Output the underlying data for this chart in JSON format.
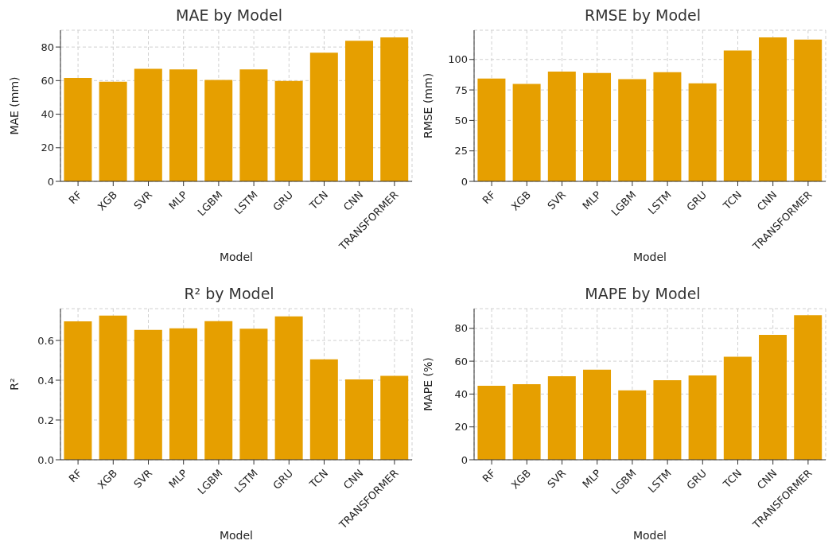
{
  "chart_data": [
    {
      "type": "bar",
      "title": "MAE by Model",
      "xlabel": "Model",
      "ylabel": "MAE (mm)",
      "categories": [
        "RF",
        "XGB",
        "SVR",
        "MLP",
        "LGBM",
        "LSTM",
        "GRU",
        "TCN",
        "CNN",
        "TRANSFORMER"
      ],
      "values": [
        61.6,
        59.3,
        67.0,
        66.7,
        60.4,
        66.7,
        59.8,
        76.6,
        83.7,
        85.7
      ],
      "color": "#e69f00",
      "ylim": [
        0,
        90
      ],
      "yticks": [
        0,
        20,
        40,
        60,
        80
      ],
      "grid": true
    },
    {
      "type": "bar",
      "title": "RMSE by Model",
      "xlabel": "Model",
      "ylabel": "RMSE (mm)",
      "categories": [
        "RF",
        "XGB",
        "SVR",
        "MLP",
        "LGBM",
        "LSTM",
        "GRU",
        "TCN",
        "CNN",
        "TRANSFORMER"
      ],
      "values": [
        84.3,
        80.0,
        90.1,
        89.0,
        83.9,
        89.5,
        80.4,
        107.3,
        118.1,
        116.3
      ],
      "color": "#e69f00",
      "ylim": [
        0,
        124
      ],
      "yticks": [
        0,
        25,
        50,
        75,
        100
      ],
      "grid": true
    },
    {
      "type": "bar",
      "title": "R² by Model",
      "xlabel": "Model",
      "ylabel": "R²",
      "categories": [
        "RF",
        "XGB",
        "SVR",
        "MLP",
        "LGBM",
        "LSTM",
        "GRU",
        "TCN",
        "CNN",
        "TRANSFORMER"
      ],
      "values": [
        0.696,
        0.725,
        0.653,
        0.661,
        0.697,
        0.659,
        0.721,
        0.505,
        0.404,
        0.422
      ],
      "color": "#e69f00",
      "ylim": [
        0,
        0.76
      ],
      "yticks": [
        {
          "value": 0,
          "label": "0.0"
        },
        {
          "value": 0.2,
          "label": "0.2"
        },
        {
          "value": 0.4,
          "label": "0.4"
        },
        {
          "value": 0.6,
          "label": "0.6"
        }
      ],
      "grid": true
    },
    {
      "type": "bar",
      "title": "MAPE by Model",
      "xlabel": "Model",
      "ylabel": "MAPE (%)",
      "categories": [
        "RF",
        "XGB",
        "SVR",
        "MLP",
        "LGBM",
        "LSTM",
        "GRU",
        "TCN",
        "CNN",
        "TRANSFORMER"
      ],
      "values": [
        45.0,
        46.0,
        50.8,
        54.8,
        42.2,
        48.4,
        51.3,
        62.7,
        76.0,
        88.0
      ],
      "color": "#e69f00",
      "ylim": [
        0,
        92
      ],
      "yticks": [
        0,
        20,
        40,
        60,
        80
      ],
      "grid": true
    }
  ]
}
